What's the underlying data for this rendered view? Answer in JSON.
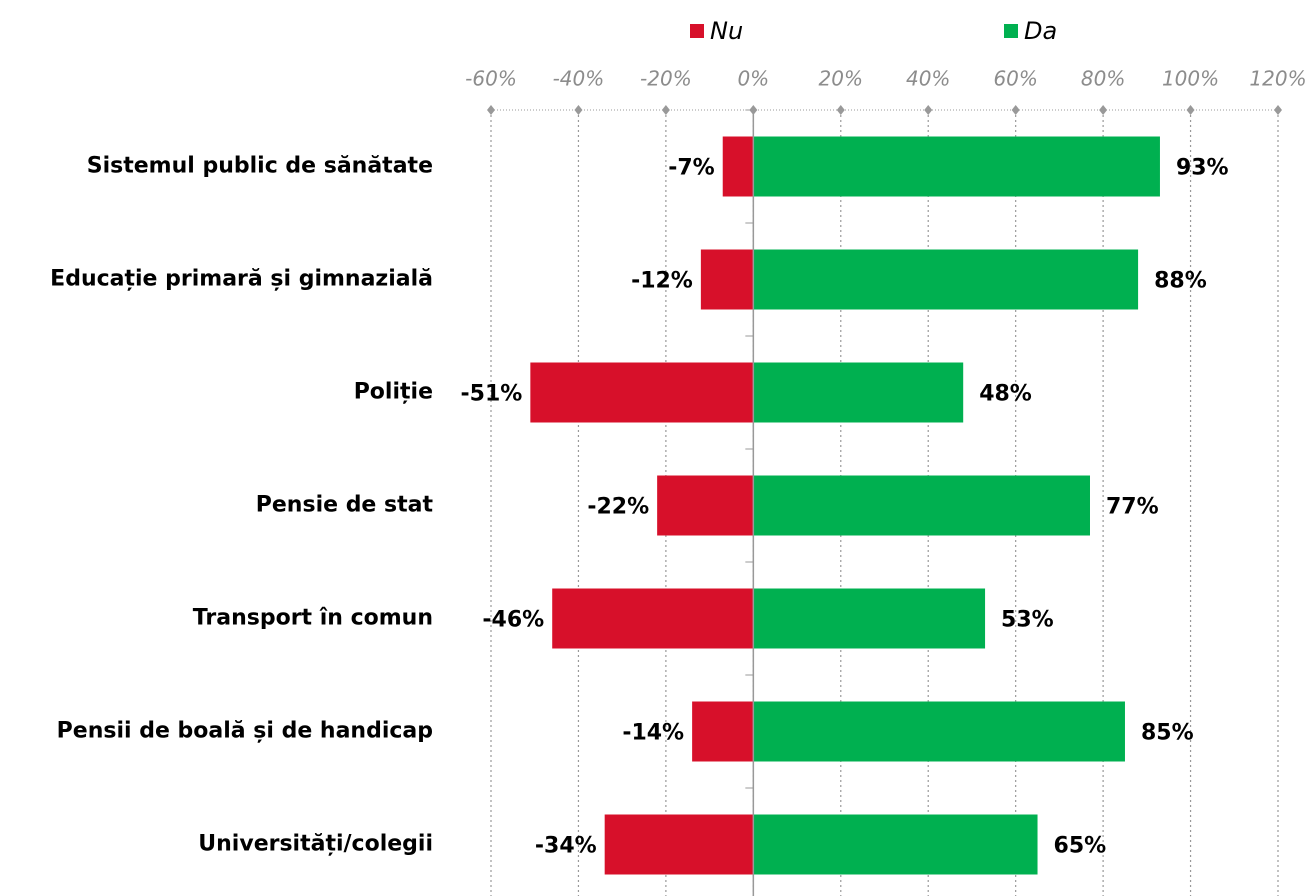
{
  "chart_data": {
    "type": "diverging_bar",
    "categories": [
      "Sistemul public de sănătate",
      "Educație primară și gimnazială",
      "Poliție",
      "Pensie de stat",
      "Transport în comun",
      "Pensii de boală și de handicap",
      "Universități/colegii"
    ],
    "series": [
      {
        "name": "Nu",
        "color": "#d7102a",
        "values": [
          -7,
          -12,
          -51,
          -22,
          -46,
          -14,
          -34
        ],
        "value_labels": [
          "-7%",
          "-12%",
          "-51%",
          "-22%",
          "-46%",
          "-14%",
          "-34%"
        ]
      },
      {
        "name": "Da",
        "color": "#00b050",
        "values": [
          93,
          88,
          48,
          77,
          53,
          85,
          65
        ],
        "value_labels": [
          "93%",
          "88%",
          "48%",
          "77%",
          "53%",
          "85%",
          "65%"
        ]
      }
    ],
    "xlim": [
      -60,
      120
    ],
    "xticks": [
      {
        "value": -60,
        "label": "-60%"
      },
      {
        "value": -40,
        "label": "-40%"
      },
      {
        "value": -20,
        "label": "-20%"
      },
      {
        "value": 0,
        "label": "0%"
      },
      {
        "value": 20,
        "label": "20%"
      },
      {
        "value": 40,
        "label": "40%"
      },
      {
        "value": 60,
        "label": "60%"
      },
      {
        "value": 80,
        "label": "80%"
      },
      {
        "value": 100,
        "label": "100%"
      },
      {
        "value": 120,
        "label": "120%"
      }
    ],
    "grid": true,
    "legend": "top"
  }
}
